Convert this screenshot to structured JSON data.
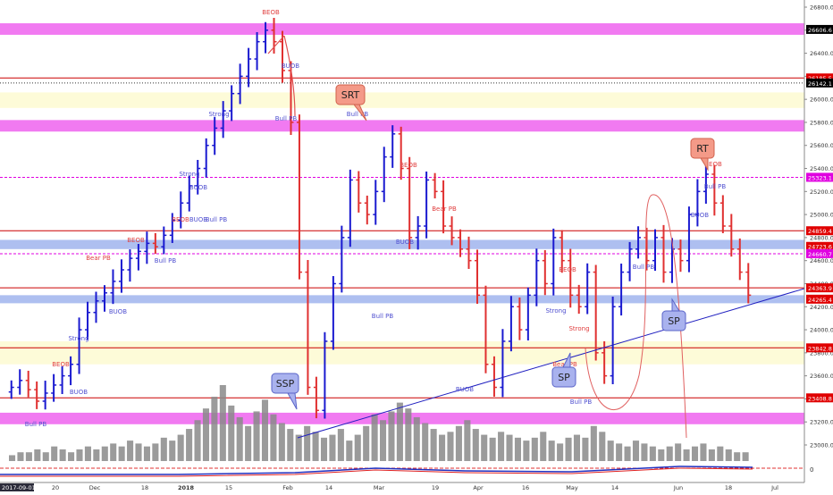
{
  "chart_data": {
    "type": "candlestick",
    "y_axis": {
      "side": "right",
      "range": [
        22950,
        26800
      ],
      "ticks": [
        26800,
        26600,
        26400,
        26200,
        26000,
        25800,
        25600,
        25400,
        25200,
        25000,
        24800,
        24600,
        24400,
        24200,
        24000,
        23800,
        23600,
        23400,
        23200,
        23000
      ],
      "tick_labels": [
        "26800.0",
        "26600.0",
        "26400.0",
        "26200.0",
        "26000.0",
        "25800.0",
        "25600.0",
        "25400.0",
        "25200.0",
        "25000.0",
        "24800.0",
        "24600.0",
        "24400.0",
        "24200.0",
        "24000.0",
        "23800.0",
        "23600.0",
        "23400.0",
        "23200.0",
        "23000.0"
      ]
    },
    "x_axis": {
      "labels": [
        "2017-09-01",
        "20",
        "Dec",
        "18",
        "2018",
        "15",
        "Feb",
        "14",
        "Mar",
        "19",
        "Apr",
        "16",
        "May",
        "14",
        "Jun",
        "18",
        "Jul"
      ]
    },
    "indicator_axis": {
      "label": "0"
    },
    "price_markers": [
      {
        "value": 26606.6,
        "label": "26606.6",
        "color": "#000000"
      },
      {
        "value": 26185.5,
        "label": "26185.5",
        "color": "#e00000"
      },
      {
        "value": 26142.1,
        "label": "26142.1",
        "color": "#000000"
      },
      {
        "value": 25323.1,
        "label": "25323.1",
        "color": "#e000e0"
      },
      {
        "value": 24859.4,
        "label": "24859.4",
        "color": "#e00000"
      },
      {
        "value": 24723.6,
        "label": "24723.6",
        "color": "#e00000"
      },
      {
        "value": 24660.7,
        "label": "24660.7",
        "color": "#e000e0"
      },
      {
        "value": 24363.9,
        "label": "24363.9",
        "color": "#e00000"
      },
      {
        "value": 24265.4,
        "label": "24265.4",
        "color": "#e00000"
      },
      {
        "value": 23842.8,
        "label": "23842.8",
        "color": "#e00000"
      },
      {
        "value": 23408.8,
        "label": "23408.8",
        "color": "#e00000"
      }
    ],
    "zones": [
      {
        "low": 26560,
        "high": 26660,
        "kind": "magenta"
      },
      {
        "low": 25925,
        "high": 26060,
        "kind": "yellow"
      },
      {
        "low": 25720,
        "high": 25820,
        "kind": "magenta"
      },
      {
        "low": 24700,
        "high": 24780,
        "kind": "blue"
      },
      {
        "low": 24230,
        "high": 24300,
        "kind": "blue"
      },
      {
        "low": 23700,
        "high": 23900,
        "kind": "yellow"
      },
      {
        "low": 23180,
        "high": 23280,
        "kind": "magenta"
      }
    ],
    "horizontal_lines": [
      {
        "value": 26185,
        "color": "#cc0000",
        "style": "solid"
      },
      {
        "value": 26142,
        "color": "#333333",
        "style": "dotted"
      },
      {
        "value": 25323,
        "color": "#e000e0",
        "style": "dashed"
      },
      {
        "value": 24859,
        "color": "#cc0000",
        "style": "solid"
      },
      {
        "value": 24660,
        "color": "#e000e0",
        "style": "dashed"
      },
      {
        "value": 24364,
        "color": "#cc0000",
        "style": "solid"
      },
      {
        "value": 23843,
        "color": "#cc0000",
        "style": "solid"
      },
      {
        "value": 23409,
        "color": "#cc0000",
        "style": "solid"
      }
    ],
    "callouts": [
      {
        "text": "SRT",
        "style": "red"
      },
      {
        "text": "RT",
        "style": "red"
      },
      {
        "text": "SSP",
        "style": "blue"
      },
      {
        "text": "SP",
        "style": "blue"
      },
      {
        "text": "SP",
        "style": "blue"
      }
    ],
    "annotations": [
      {
        "text": "BEOB",
        "color": "#e04040"
      },
      {
        "text": "BUOB",
        "color": "#5050d0"
      },
      {
        "text": "Bull PB",
        "color": "#5050d0"
      },
      {
        "text": "Bear PB",
        "color": "#e04040"
      },
      {
        "text": "Strong",
        "color": "#5050d0"
      },
      {
        "text": "Strong",
        "color": "#e04040"
      }
    ],
    "price_path": [
      23500,
      23560,
      23480,
      23380,
      23450,
      23520,
      23600,
      23700,
      24000,
      24150,
      24250,
      24320,
      24420,
      24520,
      24620,
      24680,
      24750,
      24720,
      24820,
      24950,
      25100,
      25250,
      25400,
      25600,
      25750,
      25900,
      26050,
      26200,
      26350,
      26500,
      26600,
      26500,
      26250,
      25800,
      24500,
      23500,
      23300,
      23900,
      24400,
      24800,
      25300,
      25100,
      25000,
      25200,
      25500,
      25700,
      25400,
      24800,
      24900,
      25300,
      25200,
      24900,
      24800,
      24700,
      24600,
      24300,
      23700,
      23500,
      23900,
      24200,
      24000,
      24300,
      24600,
      24400,
      24800,
      24600,
      24300,
      24200,
      24500,
      23800,
      23600,
      24200,
      24500,
      24700,
      24800,
      24600,
      24800,
      24500,
      24700,
      24600,
      25000,
      25200,
      25350,
      25100,
      24900,
      24700,
      24500,
      24300
    ],
    "volume": [
      2,
      3,
      3,
      4,
      3,
      5,
      4,
      3,
      4,
      5,
      4,
      5,
      6,
      5,
      7,
      6,
      5,
      6,
      8,
      7,
      9,
      11,
      14,
      18,
      22,
      26,
      19,
      15,
      12,
      17,
      21,
      16,
      13,
      11,
      9,
      12,
      10,
      8,
      9,
      11,
      7,
      9,
      12,
      16,
      14,
      17,
      20,
      18,
      15,
      13,
      11,
      9,
      10,
      12,
      14,
      11,
      9,
      8,
      10,
      9,
      8,
      7,
      8,
      10,
      7,
      6,
      8,
      9,
      8,
      12,
      10,
      7,
      6,
      5,
      7,
      6,
      5,
      4,
      5,
      6,
      4,
      5,
      6,
      4,
      5,
      4,
      3,
      3
    ]
  }
}
